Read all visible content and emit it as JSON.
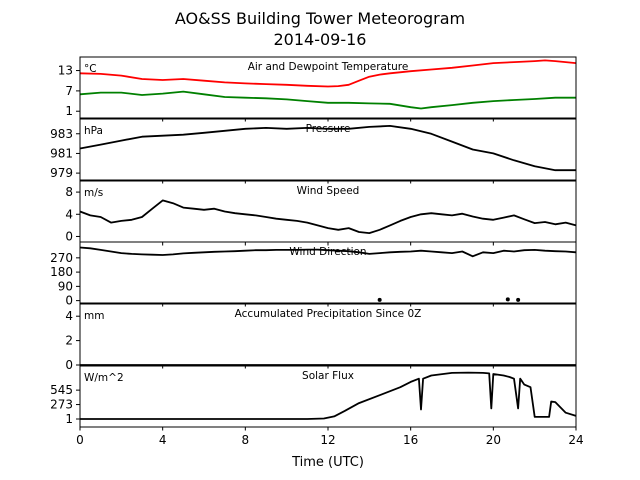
{
  "chart_data": {
    "type": "line",
    "title": "AO&SS Building Tower Meteorogram",
    "subtitle": "2014-09-16",
    "xlabel": "Time (UTC)",
    "xlim": [
      0,
      24
    ],
    "xticks": [
      "0",
      "4",
      "8",
      "12",
      "16",
      "20",
      "24"
    ],
    "panels": [
      {
        "title": "Air and Dewpoint Temperature",
        "unit": "°C",
        "ylim": [
          -1,
          17
        ],
        "yticks": [
          "13",
          "7",
          "1"
        ],
        "series": [
          {
            "color": "#ff0000",
            "x": [
              0,
              1,
              2,
              3,
              4,
              5,
              6,
              7,
              8,
              9,
              10,
              11,
              12,
              12.5,
              13,
              13.5,
              14,
              14.5,
              15,
              16,
              17,
              18,
              19,
              20,
              21,
              22,
              22.5,
              23,
              24
            ],
            "y": [
              12.2,
              12,
              11.5,
              10.5,
              10.2,
              10.5,
              10,
              9.5,
              9.2,
              9,
              8.8,
              8.5,
              8.3,
              8.4,
              8.8,
              10,
              11.2,
              11.8,
              12.2,
              12.8,
              13.3,
              13.8,
              14.5,
              15.2,
              15.5,
              15.8,
              16,
              15.8,
              15.2
            ]
          },
          {
            "color": "#008000",
            "x": [
              0,
              1,
              2,
              3,
              4,
              5,
              6,
              7,
              8,
              9,
              10,
              11,
              12,
              13,
              14,
              15,
              16,
              16.5,
              17,
              18,
              19,
              20,
              21,
              22,
              23,
              24
            ],
            "y": [
              6,
              6.5,
              6.5,
              5.8,
              6.2,
              6.8,
              6,
              5.2,
              5,
              4.8,
              4.5,
              4,
              3.5,
              3.5,
              3.3,
              3.2,
              2.2,
              1.8,
              2.2,
              2.8,
              3.5,
              4,
              4.3,
              4.6,
              5,
              5
            ]
          }
        ]
      },
      {
        "title": "Pressure",
        "unit": "hPa",
        "ylim": [
          978.3,
          984.5
        ],
        "yticks": [
          "983",
          "981",
          "979"
        ],
        "series": [
          {
            "color": "#000000",
            "x": [
              0,
              1,
              2,
              3,
              4,
              5,
              6,
              7,
              8,
              9,
              10,
              11,
              12,
              13,
              14,
              15,
              16,
              17,
              18,
              19,
              20,
              21,
              22,
              23,
              24
            ],
            "y": [
              981.5,
              981.9,
              982.3,
              982.7,
              982.8,
              982.9,
              983.1,
              983.3,
              983.5,
              983.6,
              983.5,
              983.6,
              983.5,
              983.5,
              983.7,
              983.8,
              983.5,
              983,
              982.2,
              981.4,
              981,
              980.3,
              979.7,
              979.3,
              979.3
            ]
          }
        ]
      },
      {
        "title": "Wind Speed",
        "unit": "m/s",
        "ylim": [
          -1,
          10
        ],
        "yticks": [
          "8",
          "4",
          "0"
        ],
        "series": [
          {
            "color": "#000000",
            "x": [
              0,
              0.5,
              1,
              1.5,
              2,
              2.5,
              3,
              3.5,
              4,
              4.5,
              5,
              5.5,
              6,
              6.5,
              7,
              7.5,
              8,
              8.5,
              9,
              9.5,
              10,
              10.5,
              11,
              11.5,
              12,
              12.5,
              13,
              13.5,
              14,
              14.5,
              15,
              15.5,
              16,
              16.5,
              17,
              17.5,
              18,
              18.5,
              19,
              19.5,
              20,
              20.5,
              21,
              21.5,
              22,
              22.5,
              23,
              23.5,
              24
            ],
            "y": [
              4.5,
              3.8,
              3.5,
              2.5,
              2.8,
              3,
              3.5,
              5,
              6.5,
              6,
              5.2,
              5,
              4.8,
              5,
              4.5,
              4.2,
              4,
              3.8,
              3.5,
              3.2,
              3,
              2.8,
              2.5,
              2,
              1.5,
              1.2,
              1.5,
              0.8,
              0.6,
              1.2,
              2,
              2.8,
              3.5,
              4,
              4.2,
              4,
              3.8,
              4.1,
              3.6,
              3.2,
              3,
              3.4,
              3.8,
              3.1,
              2.4,
              2.6,
              2.2,
              2.5,
              2
            ]
          }
        ]
      },
      {
        "title": "Wind Direction",
        "unit": "",
        "ylim": [
          -15,
          370
        ],
        "yticks": [
          "270",
          "180",
          "90",
          "0"
        ],
        "series": [
          {
            "color": "#000000",
            "x": [
              0,
              0.5,
              1,
              1.5,
              2,
              2.5,
              3,
              3.5,
              4,
              4.5,
              5,
              5.5,
              6,
              6.5,
              7,
              7.5,
              8,
              8.5,
              9,
              9.5,
              10,
              10.5,
              11,
              11.5,
              12,
              12.5,
              13,
              13.5,
              14,
              14.5,
              15,
              15.5,
              16,
              16.5,
              17,
              17.5,
              18,
              18.5,
              19,
              19.5,
              20,
              20.5,
              21,
              21.5,
              22,
              22.5,
              23,
              23.5,
              24
            ],
            "y": [
              335,
              330,
              320,
              310,
              300,
              295,
              292,
              290,
              288,
              292,
              298,
              302,
              305,
              308,
              310,
              312,
              315,
              318,
              318,
              320,
              320,
              320,
              322,
              322,
              318,
              315,
              312,
              305,
              295,
              300,
              305,
              308,
              310,
              315,
              310,
              305,
              300,
              310,
              280,
              305,
              300,
              315,
              310,
              318,
              320,
              315,
              312,
              310,
              305
            ]
          }
        ],
        "points": {
          "x": [
            14.5,
            20.7,
            21.2
          ],
          "y": [
            5,
            8,
            5
          ]
        }
      },
      {
        "title": "Accumulated Precipitation Since 0Z",
        "unit": "mm",
        "ylim": [
          0,
          5
        ],
        "yticks": [
          "4",
          "2",
          "0"
        ],
        "series": [
          {
            "color": "#000000",
            "x": [
              0,
              24
            ],
            "y": [
              0,
              0
            ]
          }
        ]
      },
      {
        "title": "Solar Flux",
        "unit": "W/m^2",
        "ylim": [
          -150,
          1000
        ],
        "yticks": [
          "545",
          "273",
          "1"
        ],
        "series": [
          {
            "color": "#000000",
            "x": [
              0,
              11,
              11.8,
              12.3,
              12.8,
              13.5,
              14.5,
              15.5,
              16,
              16.4,
              16.5,
              16.6,
              17,
              18,
              18.8,
              19.5,
              19.8,
              19.9,
              20,
              20.5,
              20.8,
              21,
              21.2,
              21.3,
              21.5,
              21.8,
              22,
              22.2,
              22.5,
              22.7,
              22.8,
              23,
              23.5,
              24
            ],
            "y": [
              1,
              1,
              10,
              50,
              150,
              300,
              450,
              600,
              700,
              760,
              180,
              760,
              820,
              870,
              875,
              870,
              860,
              200,
              850,
              820,
              790,
              760,
              200,
              760,
              650,
              600,
              40,
              40,
              40,
              40,
              330,
              320,
              120,
              60
            ]
          }
        ]
      }
    ]
  }
}
